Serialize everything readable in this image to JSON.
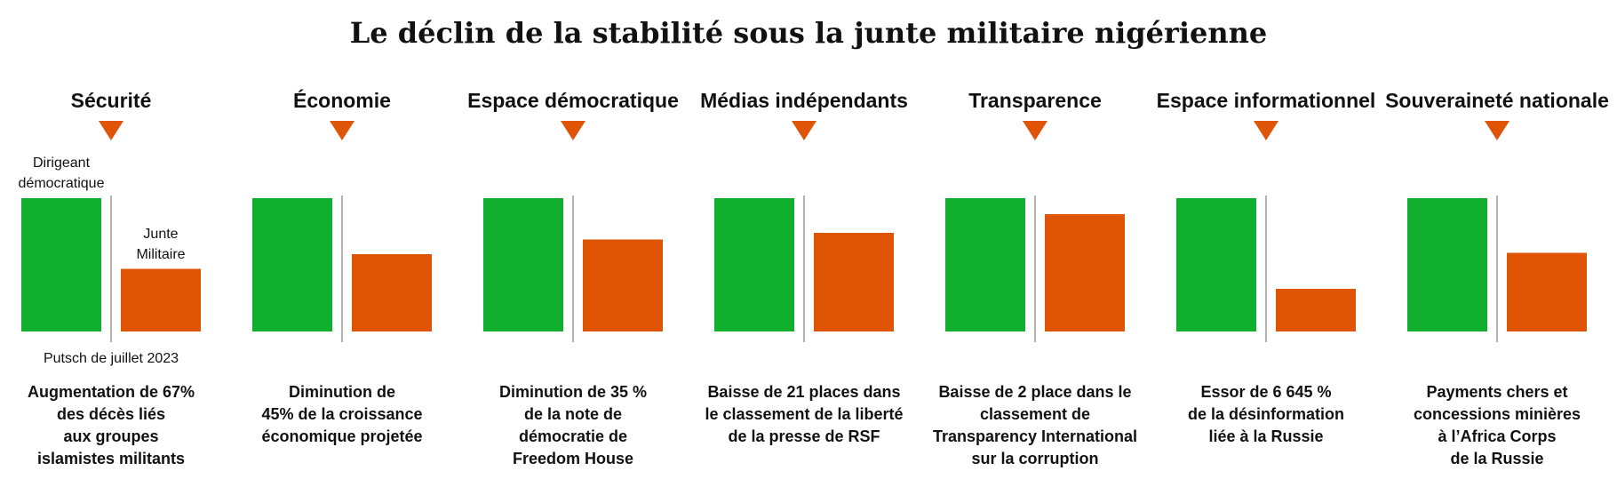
{
  "title": "Le déclin de la stabilité sous la junte militaire nigérienne",
  "colors": {
    "democratic": "#10b02e",
    "junta": "#e05406",
    "arrow": "#e05406",
    "divider": "#9a9a9a"
  },
  "legend": {
    "democratic_line1": "Dirigeant",
    "democratic_line2": "démocratique",
    "junta_line1": "Junte",
    "junta_line2": "Militaire",
    "divider_caption": "Putsch de juillet 2023"
  },
  "chart_data": {
    "type": "bar",
    "value_scale": "relative level, democratic leader = 100",
    "panels": [
      {
        "title": "Sécurité",
        "democratic": 100,
        "junta": 47,
        "description": [
          "Augmentation de 67%",
          "des décès liés",
          "aux  groupes",
          "islamistes militants"
        ]
      },
      {
        "title": "Économie",
        "democratic": 100,
        "junta": 58,
        "description": [
          "Diminution de",
          "45% de la croissance",
          "économique projetée"
        ]
      },
      {
        "title": "Espace démocratique",
        "democratic": 100,
        "junta": 69,
        "description": [
          "Diminution de 35 %",
          "de la note de",
          "démocratie de",
          "Freedom House"
        ]
      },
      {
        "title": "Médias indépendants",
        "democratic": 100,
        "junta": 74,
        "description": [
          "Baisse de 21 places dans",
          "le classement de la liberté",
          "de la presse de RSF"
        ]
      },
      {
        "title": "Transparence",
        "democratic": 100,
        "junta": 88,
        "description": [
          "Baisse de 2 place dans le",
          "classement de",
          "Transparency International",
          "sur la corruption"
        ]
      },
      {
        "title": "Espace informationnel",
        "democratic": 100,
        "junta": 32,
        "description": [
          "Essor de 6 645 %",
          "de la désinformation",
          "liée à la  Russie"
        ]
      },
      {
        "title": "Souveraineté nationale",
        "democratic": 100,
        "junta": 59,
        "description": [
          "Payments chers et",
          "concessions minières",
          "à l’Africa Corps",
          "de la Russie"
        ]
      }
    ]
  }
}
